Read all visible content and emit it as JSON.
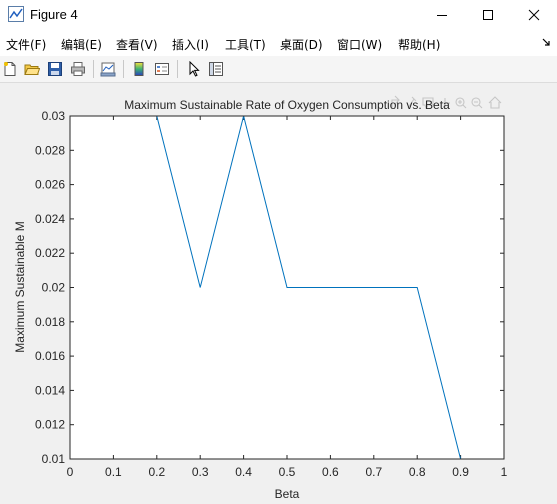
{
  "window": {
    "title": "Figure 4",
    "icon": "matlab-figure-icon",
    "controls": [
      "minimize-icon",
      "maximize-icon",
      "close-icon"
    ]
  },
  "menubar": {
    "items": [
      {
        "label": "文件(F)"
      },
      {
        "label": "编辑(E)"
      },
      {
        "label": "查看(V)"
      },
      {
        "label": "插入(I)"
      },
      {
        "label": "工具(T)"
      },
      {
        "label": "桌面(D)"
      },
      {
        "label": "窗口(W)"
      },
      {
        "label": "帮助(H)"
      }
    ],
    "overflow_icon": "dock-arrow-icon"
  },
  "toolbar": {
    "buttons": [
      {
        "icon": "new-figure-icon"
      },
      {
        "icon": "open-file-icon"
      },
      {
        "icon": "save-icon"
      },
      {
        "icon": "print-icon"
      },
      {
        "icon": "link-plot-icon"
      },
      {
        "icon": "insert-colorbar-icon"
      },
      {
        "icon": "insert-legend-icon"
      },
      {
        "icon": "edit-plot-arrow-icon"
      },
      {
        "icon": "property-inspector-icon"
      }
    ]
  },
  "axes_toolbar": {
    "icons": [
      "export-icon",
      "brush-icon",
      "data-tips-icon",
      "pan-icon",
      "zoom-in-icon",
      "zoom-out-icon",
      "home-icon"
    ]
  },
  "chart_data": {
    "type": "line",
    "title": "Maximum Sustainable Rate of Oxygen Consumption vs. Beta",
    "xlabel": "Beta",
    "ylabel": "Maximum Sustainable M",
    "xlim": [
      0,
      1
    ],
    "ylim": [
      0.01,
      0.03
    ],
    "xticks": [
      "0",
      "0.1",
      "0.2",
      "0.3",
      "0.4",
      "0.5",
      "0.6",
      "0.7",
      "0.8",
      "0.9",
      "1"
    ],
    "yticks": [
      "0.01",
      "0.012",
      "0.014",
      "0.016",
      "0.018",
      "0.02",
      "0.022",
      "0.024",
      "0.026",
      "0.028",
      "0.03"
    ],
    "grid": false,
    "line_color": "#0072bd",
    "series": [
      {
        "x": [
          0,
          0.1,
          0.2,
          0.3,
          0.4,
          0.5,
          0.6,
          0.7,
          0.8,
          0.9,
          1.0
        ],
        "values": [
          0.03,
          0.03,
          0.03,
          0.02,
          0.03,
          0.02,
          0.02,
          0.02,
          0.02,
          0.01,
          0.01
        ]
      }
    ]
  }
}
